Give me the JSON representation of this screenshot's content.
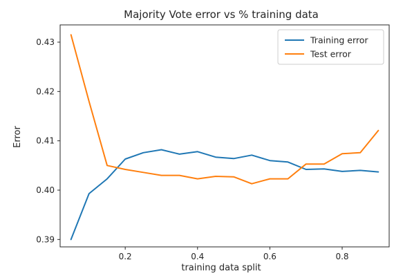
{
  "chart_data": {
    "type": "line",
    "title": "Majority Vote error vs % training data",
    "xlabel": "training data split",
    "ylabel": "Error",
    "xlim": [
      0.02,
      0.93
    ],
    "ylim": [
      0.3885,
      0.4335
    ],
    "xticks": [
      0.2,
      0.4,
      0.6,
      0.8
    ],
    "xtick_labels": [
      "0.2",
      "0.4",
      "0.6",
      "0.8"
    ],
    "yticks": [
      0.39,
      0.4,
      0.41,
      0.42,
      0.43
    ],
    "ytick_labels": [
      "0.39",
      "0.40",
      "0.41",
      "0.42",
      "0.43"
    ],
    "grid": false,
    "legend_position": "top-right",
    "x": [
      0.05,
      0.1,
      0.15,
      0.2,
      0.25,
      0.3,
      0.35,
      0.4,
      0.45,
      0.5,
      0.55,
      0.6,
      0.65,
      0.7,
      0.75,
      0.8,
      0.85,
      0.9
    ],
    "series": [
      {
        "name": "Training error",
        "color": "#1f77b4",
        "values": [
          0.39,
          0.3993,
          0.4023,
          0.4063,
          0.4076,
          0.4082,
          0.4073,
          0.4078,
          0.4067,
          0.4064,
          0.4071,
          0.406,
          0.4057,
          0.4042,
          0.4043,
          0.4038,
          0.404,
          0.4037
        ]
      },
      {
        "name": "Test error",
        "color": "#ff7f0e",
        "values": [
          0.4315,
          0.418,
          0.405,
          0.4042,
          0.4036,
          0.403,
          0.403,
          0.4023,
          0.4028,
          0.4027,
          0.4013,
          0.4023,
          0.4023,
          0.4053,
          0.4053,
          0.4074,
          0.4076,
          0.4121
        ]
      }
    ]
  }
}
